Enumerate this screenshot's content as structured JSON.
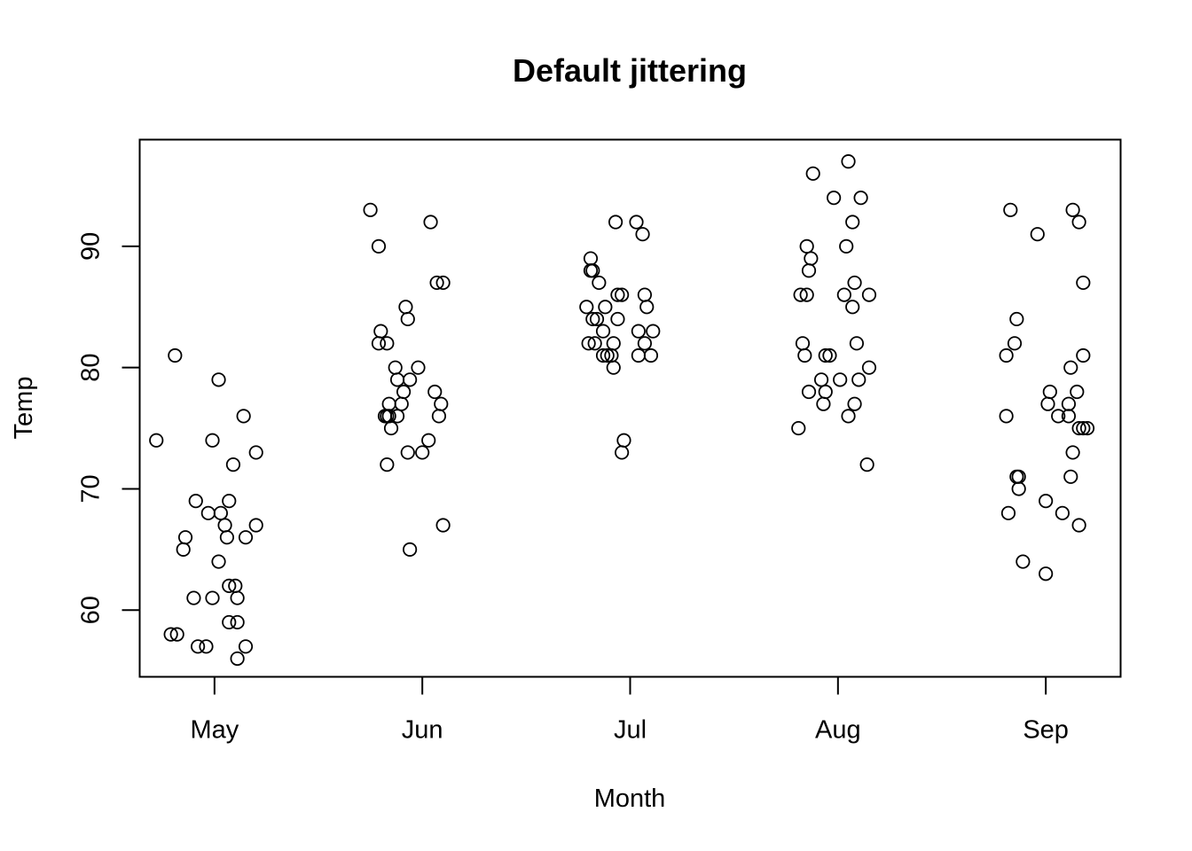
{
  "chart_data": {
    "type": "scatter",
    "title": "Default jittering",
    "xlabel": "Month",
    "ylabel": "Temp",
    "categories": [
      "May",
      "Jun",
      "Jul",
      "Aug",
      "Sep"
    ],
    "yticks": [
      60,
      70,
      80,
      90
    ],
    "ylim": [
      54.5,
      98.8
    ],
    "grid": false,
    "legend": "none",
    "marker": "open-circle",
    "colors": {
      "points": "#000000",
      "frame": "#000000",
      "background": "#ffffff"
    },
    "series": [
      {
        "category": "May",
        "points": [
          {
            "x": 0.72,
            "y": 74
          },
          {
            "x": 0.79,
            "y": 58
          },
          {
            "x": 0.81,
            "y": 81
          },
          {
            "x": 0.82,
            "y": 58
          },
          {
            "x": 0.85,
            "y": 65
          },
          {
            "x": 0.86,
            "y": 66
          },
          {
            "x": 0.9,
            "y": 61
          },
          {
            "x": 0.91,
            "y": 69
          },
          {
            "x": 0.92,
            "y": 57
          },
          {
            "x": 0.96,
            "y": 57
          },
          {
            "x": 0.97,
            "y": 68
          },
          {
            "x": 0.99,
            "y": 61
          },
          {
            "x": 0.99,
            "y": 74
          },
          {
            "x": 1.02,
            "y": 64
          },
          {
            "x": 1.02,
            "y": 79
          },
          {
            "x": 1.03,
            "y": 68
          },
          {
            "x": 1.05,
            "y": 67
          },
          {
            "x": 1.06,
            "y": 66
          },
          {
            "x": 1.07,
            "y": 69
          },
          {
            "x": 1.07,
            "y": 59
          },
          {
            "x": 1.07,
            "y": 62
          },
          {
            "x": 1.09,
            "y": 72
          },
          {
            "x": 1.1,
            "y": 62
          },
          {
            "x": 1.11,
            "y": 61
          },
          {
            "x": 1.11,
            "y": 59
          },
          {
            "x": 1.11,
            "y": 56
          },
          {
            "x": 1.14,
            "y": 76
          },
          {
            "x": 1.15,
            "y": 57
          },
          {
            "x": 1.15,
            "y": 66
          },
          {
            "x": 1.2,
            "y": 73
          },
          {
            "x": 1.2,
            "y": 67
          }
        ]
      },
      {
        "category": "Jun",
        "points": [
          {
            "x": 1.75,
            "y": 93
          },
          {
            "x": 1.79,
            "y": 90
          },
          {
            "x": 1.79,
            "y": 82
          },
          {
            "x": 1.8,
            "y": 83
          },
          {
            "x": 1.82,
            "y": 76
          },
          {
            "x": 1.83,
            "y": 82
          },
          {
            "x": 1.83,
            "y": 76
          },
          {
            "x": 1.83,
            "y": 72
          },
          {
            "x": 1.84,
            "y": 77
          },
          {
            "x": 1.84,
            "y": 76
          },
          {
            "x": 1.85,
            "y": 75
          },
          {
            "x": 1.87,
            "y": 80
          },
          {
            "x": 1.88,
            "y": 79
          },
          {
            "x": 1.88,
            "y": 76
          },
          {
            "x": 1.9,
            "y": 77
          },
          {
            "x": 1.91,
            "y": 78
          },
          {
            "x": 1.92,
            "y": 85
          },
          {
            "x": 1.93,
            "y": 84
          },
          {
            "x": 1.93,
            "y": 73
          },
          {
            "x": 1.94,
            "y": 79
          },
          {
            "x": 1.94,
            "y": 65
          },
          {
            "x": 1.98,
            "y": 80
          },
          {
            "x": 2.0,
            "y": 73
          },
          {
            "x": 2.03,
            "y": 74
          },
          {
            "x": 2.04,
            "y": 92
          },
          {
            "x": 2.06,
            "y": 78
          },
          {
            "x": 2.07,
            "y": 87
          },
          {
            "x": 2.08,
            "y": 76
          },
          {
            "x": 2.09,
            "y": 77
          },
          {
            "x": 2.1,
            "y": 87
          },
          {
            "x": 2.1,
            "y": 67
          }
        ]
      },
      {
        "category": "Jul",
        "points": [
          {
            "x": 2.79,
            "y": 85
          },
          {
            "x": 2.8,
            "y": 82
          },
          {
            "x": 2.81,
            "y": 88
          },
          {
            "x": 2.81,
            "y": 89
          },
          {
            "x": 2.82,
            "y": 84
          },
          {
            "x": 2.82,
            "y": 88
          },
          {
            "x": 2.83,
            "y": 82
          },
          {
            "x": 2.84,
            "y": 84
          },
          {
            "x": 2.85,
            "y": 87
          },
          {
            "x": 2.87,
            "y": 83
          },
          {
            "x": 2.87,
            "y": 81
          },
          {
            "x": 2.88,
            "y": 85
          },
          {
            "x": 2.89,
            "y": 81
          },
          {
            "x": 2.91,
            "y": 81
          },
          {
            "x": 2.92,
            "y": 80
          },
          {
            "x": 2.92,
            "y": 82
          },
          {
            "x": 2.93,
            "y": 92
          },
          {
            "x": 2.94,
            "y": 86
          },
          {
            "x": 2.94,
            "y": 84
          },
          {
            "x": 2.96,
            "y": 86
          },
          {
            "x": 2.96,
            "y": 73
          },
          {
            "x": 2.97,
            "y": 74
          },
          {
            "x": 3.03,
            "y": 92
          },
          {
            "x": 3.04,
            "y": 81
          },
          {
            "x": 3.04,
            "y": 83
          },
          {
            "x": 3.06,
            "y": 91
          },
          {
            "x": 3.07,
            "y": 86
          },
          {
            "x": 3.07,
            "y": 82
          },
          {
            "x": 3.08,
            "y": 85
          },
          {
            "x": 3.1,
            "y": 81
          },
          {
            "x": 3.11,
            "y": 83
          }
        ]
      },
      {
        "category": "Aug",
        "points": [
          {
            "x": 3.81,
            "y": 75
          },
          {
            "x": 3.82,
            "y": 86
          },
          {
            "x": 3.83,
            "y": 82
          },
          {
            "x": 3.84,
            "y": 81
          },
          {
            "x": 3.85,
            "y": 86
          },
          {
            "x": 3.85,
            "y": 90
          },
          {
            "x": 3.86,
            "y": 78
          },
          {
            "x": 3.86,
            "y": 88
          },
          {
            "x": 3.87,
            "y": 89
          },
          {
            "x": 3.88,
            "y": 96
          },
          {
            "x": 3.92,
            "y": 79
          },
          {
            "x": 3.93,
            "y": 77
          },
          {
            "x": 3.94,
            "y": 78
          },
          {
            "x": 3.94,
            "y": 81
          },
          {
            "x": 3.96,
            "y": 81
          },
          {
            "x": 3.98,
            "y": 94
          },
          {
            "x": 4.01,
            "y": 79
          },
          {
            "x": 4.03,
            "y": 86
          },
          {
            "x": 4.04,
            "y": 90
          },
          {
            "x": 4.05,
            "y": 97
          },
          {
            "x": 4.05,
            "y": 76
          },
          {
            "x": 4.07,
            "y": 85
          },
          {
            "x": 4.07,
            "y": 92
          },
          {
            "x": 4.08,
            "y": 77
          },
          {
            "x": 4.08,
            "y": 87
          },
          {
            "x": 4.09,
            "y": 82
          },
          {
            "x": 4.1,
            "y": 79
          },
          {
            "x": 4.11,
            "y": 94
          },
          {
            "x": 4.14,
            "y": 72
          },
          {
            "x": 4.15,
            "y": 86
          },
          {
            "x": 4.15,
            "y": 80
          }
        ]
      },
      {
        "category": "Sep",
        "points": [
          {
            "x": 4.81,
            "y": 81
          },
          {
            "x": 4.81,
            "y": 76
          },
          {
            "x": 4.82,
            "y": 68
          },
          {
            "x": 4.83,
            "y": 93
          },
          {
            "x": 4.85,
            "y": 82
          },
          {
            "x": 4.86,
            "y": 71
          },
          {
            "x": 4.86,
            "y": 84
          },
          {
            "x": 4.87,
            "y": 71
          },
          {
            "x": 4.87,
            "y": 70
          },
          {
            "x": 4.89,
            "y": 64
          },
          {
            "x": 4.96,
            "y": 91
          },
          {
            "x": 5.0,
            "y": 63
          },
          {
            "x": 5.0,
            "y": 69
          },
          {
            "x": 5.01,
            "y": 77
          },
          {
            "x": 5.02,
            "y": 78
          },
          {
            "x": 5.06,
            "y": 76
          },
          {
            "x": 5.08,
            "y": 68
          },
          {
            "x": 5.11,
            "y": 77
          },
          {
            "x": 5.11,
            "y": 76
          },
          {
            "x": 5.12,
            "y": 71
          },
          {
            "x": 5.12,
            "y": 80
          },
          {
            "x": 5.13,
            "y": 93
          },
          {
            "x": 5.13,
            "y": 73
          },
          {
            "x": 5.15,
            "y": 78
          },
          {
            "x": 5.16,
            "y": 75
          },
          {
            "x": 5.16,
            "y": 92
          },
          {
            "x": 5.16,
            "y": 67
          },
          {
            "x": 5.18,
            "y": 75
          },
          {
            "x": 5.18,
            "y": 87
          },
          {
            "x": 5.18,
            "y": 81
          },
          {
            "x": 5.2,
            "y": 75
          }
        ]
      }
    ]
  }
}
